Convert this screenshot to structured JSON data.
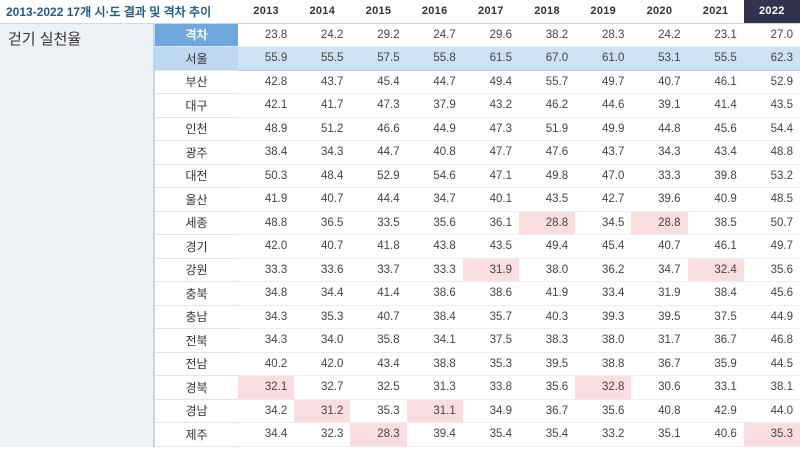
{
  "title": "2013-2022 17개 시·도 결과 및 격차 추이",
  "section_label": "걷기 실천율",
  "years": [
    "2013",
    "2014",
    "2015",
    "2016",
    "2017",
    "2018",
    "2019",
    "2020",
    "2021",
    "2022"
  ],
  "highlight_year": "2022",
  "accent_colors": {
    "diff_label_bg": "#6fa8dc",
    "seoul_row_bg": "#cfe2f5",
    "low_cell_bg": "#fadde1",
    "highlight_year_bg": "#33334d"
  },
  "rows": [
    {
      "region": "격차",
      "kind": "diff",
      "values": [
        "23.8",
        "24.2",
        "29.2",
        "24.7",
        "29.6",
        "38.2",
        "28.3",
        "24.2",
        "23.1",
        "27.0"
      ],
      "low": []
    },
    {
      "region": "서울",
      "kind": "seoul",
      "values": [
        "55.9",
        "55.5",
        "57.5",
        "55.8",
        "61.5",
        "67.0",
        "61.0",
        "53.1",
        "55.5",
        "62.3"
      ],
      "low": []
    },
    {
      "region": "부산",
      "kind": "normal",
      "values": [
        "42.8",
        "43.7",
        "45.4",
        "44.7",
        "49.4",
        "55.7",
        "49.7",
        "40.7",
        "46.1",
        "52.9"
      ],
      "low": []
    },
    {
      "region": "대구",
      "kind": "normal",
      "values": [
        "42.1",
        "41.7",
        "47.3",
        "37.9",
        "43.2",
        "46.2",
        "44.6",
        "39.1",
        "41.4",
        "43.5"
      ],
      "low": []
    },
    {
      "region": "인천",
      "kind": "normal",
      "values": [
        "48.9",
        "51.2",
        "46.6",
        "44.9",
        "47.3",
        "51.9",
        "49.9",
        "44.8",
        "45.6",
        "54.4"
      ],
      "low": []
    },
    {
      "region": "광주",
      "kind": "normal",
      "values": [
        "38.4",
        "34.3",
        "44.7",
        "40.8",
        "47.7",
        "47.6",
        "43.7",
        "34.3",
        "43.4",
        "48.8"
      ],
      "low": []
    },
    {
      "region": "대전",
      "kind": "normal",
      "values": [
        "50.3",
        "48.4",
        "52.9",
        "54.6",
        "47.1",
        "49.8",
        "47.0",
        "33.3",
        "39.8",
        "53.2"
      ],
      "low": []
    },
    {
      "region": "울산",
      "kind": "normal",
      "values": [
        "41.9",
        "40.7",
        "44.4",
        "34.7",
        "40.1",
        "43.5",
        "42.7",
        "39.6",
        "40.9",
        "48.5"
      ],
      "low": []
    },
    {
      "region": "세종",
      "kind": "normal",
      "values": [
        "48.8",
        "36.5",
        "33.5",
        "35.6",
        "36.1",
        "28.8",
        "34.5",
        "28.8",
        "38.5",
        "50.7"
      ],
      "low": [
        5,
        7
      ]
    },
    {
      "region": "경기",
      "kind": "normal",
      "values": [
        "42.0",
        "40.7",
        "41.8",
        "43.8",
        "43.5",
        "49.4",
        "45.4",
        "40.7",
        "46.1",
        "49.7"
      ],
      "low": []
    },
    {
      "region": "강원",
      "kind": "normal",
      "values": [
        "33.3",
        "33.6",
        "33.7",
        "33.3",
        "31.9",
        "38.0",
        "36.2",
        "34.7",
        "32.4",
        "35.6"
      ],
      "low": [
        4,
        8
      ]
    },
    {
      "region": "충북",
      "kind": "normal",
      "values": [
        "34.8",
        "34.4",
        "41.4",
        "38.6",
        "38.6",
        "41.9",
        "33.4",
        "31.9",
        "38.4",
        "45.6"
      ],
      "low": []
    },
    {
      "region": "충남",
      "kind": "normal",
      "values": [
        "34.3",
        "35.3",
        "40.7",
        "38.4",
        "35.7",
        "40.3",
        "39.3",
        "39.5",
        "37.5",
        "44.9"
      ],
      "low": []
    },
    {
      "region": "전북",
      "kind": "normal",
      "values": [
        "34.3",
        "34.0",
        "35.8",
        "34.1",
        "37.5",
        "38.3",
        "38.0",
        "31.7",
        "36.7",
        "46.8"
      ],
      "low": []
    },
    {
      "region": "전남",
      "kind": "normal",
      "values": [
        "40.2",
        "42.0",
        "43.4",
        "38.8",
        "35.3",
        "39.5",
        "38.8",
        "36.7",
        "35.9",
        "44.5"
      ],
      "low": []
    },
    {
      "region": "경북",
      "kind": "normal",
      "values": [
        "32.1",
        "32.7",
        "32.5",
        "31.3",
        "33.8",
        "35.6",
        "32.8",
        "30.6",
        "33.1",
        "38.1"
      ],
      "low": [
        0,
        6
      ]
    },
    {
      "region": "경남",
      "kind": "normal",
      "values": [
        "34.2",
        "31.2",
        "35.3",
        "31.1",
        "34.9",
        "36.7",
        "35.6",
        "40.8",
        "42.9",
        "44.0"
      ],
      "low": [
        1,
        3
      ]
    },
    {
      "region": "제주",
      "kind": "normal",
      "values": [
        "34.4",
        "32.3",
        "28.3",
        "39.4",
        "35.4",
        "35.4",
        "33.2",
        "35.1",
        "40.6",
        "35.3"
      ],
      "low": [
        2,
        9
      ]
    }
  ]
}
